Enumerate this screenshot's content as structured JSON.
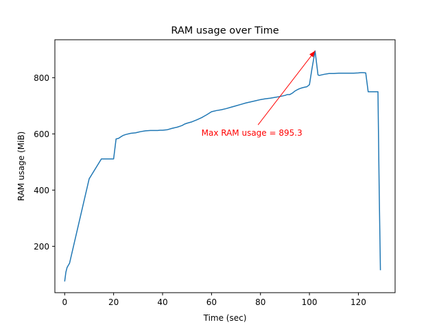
{
  "chart_data": {
    "type": "line",
    "title": "RAM usage over Time",
    "xlabel": "Time (sec)",
    "ylabel": "RAM usage (MiB)",
    "xlim": [
      -4,
      135
    ],
    "ylim": [
      35,
      935
    ],
    "xticks": [
      0,
      20,
      40,
      60,
      80,
      100,
      120
    ],
    "yticks": [
      200,
      400,
      600,
      800
    ],
    "grid": false,
    "line_color": "#1f77b4",
    "annotation_color": "#ff0000",
    "annotation": {
      "text": "Max RAM usage = 895.3",
      "point": [
        102.3,
        895.3
      ],
      "text_anchor_point": [
        79,
        632
      ]
    },
    "series": [
      {
        "x": [
          0,
          0.5,
          1,
          2,
          4,
          6,
          8,
          10,
          15,
          18.5,
          20,
          21,
          22,
          23,
          24,
          25,
          27,
          29,
          30,
          31,
          33,
          35,
          37,
          38,
          39,
          40,
          42,
          44,
          46,
          47,
          48,
          49,
          50,
          52,
          54,
          56,
          57,
          58,
          60,
          62,
          64,
          66,
          68,
          70,
          72,
          74,
          76,
          78,
          80,
          82,
          84,
          86,
          88,
          90,
          91,
          92,
          93,
          94,
          95,
          96,
          97,
          98,
          99,
          100,
          101,
          102.3,
          103.5,
          104,
          106,
          108,
          110,
          112,
          114,
          116,
          118,
          120,
          121,
          122,
          123,
          124,
          126,
          128,
          128.5,
          129
        ],
        "y": [
          75,
          108,
          125,
          140,
          215,
          290,
          365,
          440,
          511,
          511,
          511,
          582,
          584,
          590,
          595,
          598,
          602,
          604,
          606,
          608,
          611,
          612,
          612,
          612,
          613,
          613,
          615,
          620,
          624,
          627,
          630,
          635,
          638,
          643,
          650,
          658,
          663,
          668,
          679,
          683,
          686,
          690,
          695,
          700,
          705,
          710,
          714,
          718,
          722,
          725,
          727,
          730,
          733,
          737,
          740,
          740,
          745,
          752,
          757,
          761,
          764,
          766,
          768,
          775,
          830,
          895.3,
          810,
          808,
          812,
          815,
          815,
          816,
          816,
          816,
          816,
          817,
          818,
          818,
          817,
          750,
          750,
          750,
          400,
          115
        ]
      }
    ]
  }
}
